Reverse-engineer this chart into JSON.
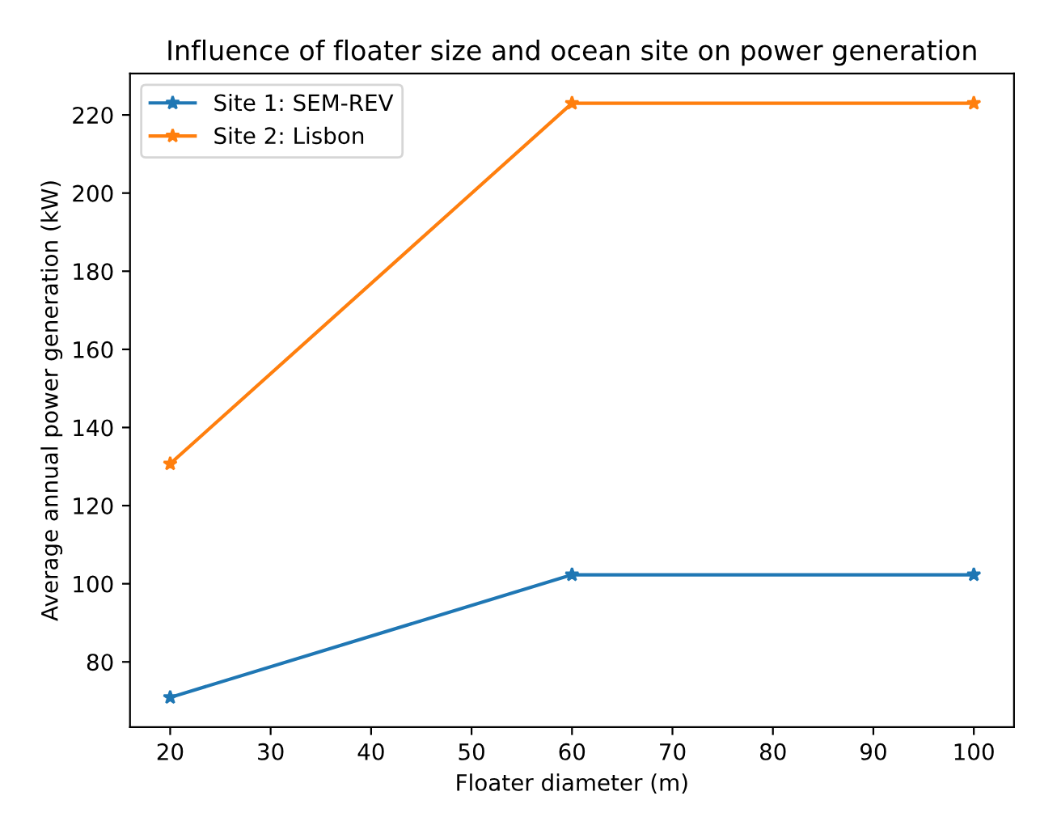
{
  "chart_data": {
    "type": "line",
    "title": "Influence of floater size and ocean site on power generation",
    "xlabel": "Floater diameter (m)",
    "ylabel": "Average annual power generation (kW)",
    "x": [
      20,
      60,
      100
    ],
    "series": [
      {
        "name": "Site 1: SEM-REV",
        "color": "#1f77b4",
        "values": [
          70.9,
          102.3,
          102.3
        ]
      },
      {
        "name": "Site 2: Lisbon",
        "color": "#ff7f0e",
        "values": [
          130.7,
          223.0,
          223.0
        ]
      }
    ],
    "xlim": [
      16,
      104
    ],
    "xticks": [
      20,
      30,
      40,
      50,
      60,
      70,
      80,
      90,
      100
    ],
    "ylim": [
      63.3,
      230.6
    ],
    "yticks": [
      80,
      100,
      120,
      140,
      160,
      180,
      200,
      220
    ],
    "marker": "star",
    "line_style": "solid",
    "grid": false,
    "legend": "top left"
  }
}
